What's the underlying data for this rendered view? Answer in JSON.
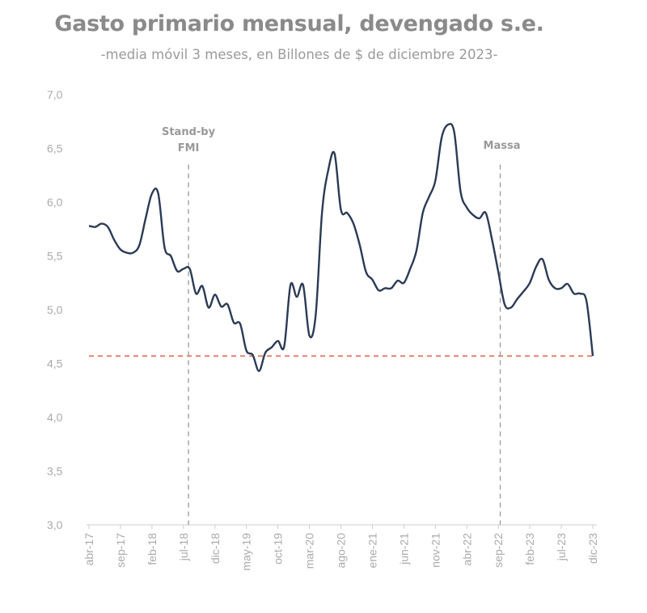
{
  "chart_data": {
    "type": "line",
    "title": "Gasto primario mensual, devengado s.e.",
    "subtitle": "-media móvil 3 meses, en Billones de $ de diciembre 2023-",
    "xlabel": "",
    "ylabel": "",
    "ylim": [
      3.0,
      7.0
    ],
    "y_ticks": [
      "3,0",
      "3,5",
      "4,0",
      "4,5",
      "5,0",
      "5,5",
      "6,0",
      "6,5",
      "7,0"
    ],
    "x_tick_labels": [
      "abr-17",
      "sep-17",
      "feb-18",
      "jul-18",
      "dic-18",
      "may-19",
      "oct-19",
      "mar-20",
      "ago-20",
      "ene-21",
      "jun-21",
      "nov-21",
      "abr-22",
      "sep-22",
      "feb-23",
      "jul-23",
      "dic-23"
    ],
    "x_start": "abr-17",
    "x_end": "dic-23",
    "grid": false,
    "series": [
      {
        "color": "#2b3a55",
        "values": [
          5.78,
          5.77,
          5.8,
          5.77,
          5.65,
          5.56,
          5.53,
          5.53,
          5.6,
          5.85,
          6.08,
          6.08,
          5.58,
          5.5,
          5.36,
          5.38,
          5.38,
          5.15,
          5.22,
          5.02,
          5.14,
          5.03,
          5.05,
          4.88,
          4.87,
          4.62,
          4.58,
          4.43,
          4.6,
          4.65,
          4.71,
          4.66,
          5.23,
          5.12,
          5.23,
          4.76,
          4.95,
          5.9,
          6.3,
          6.45,
          5.93,
          5.9,
          5.8,
          5.6,
          5.35,
          5.28,
          5.18,
          5.2,
          5.2,
          5.27,
          5.25,
          5.38,
          5.55,
          5.9,
          6.05,
          6.2,
          6.6,
          6.72,
          6.65,
          6.1,
          5.95,
          5.88,
          5.85,
          5.9,
          5.65,
          5.35,
          5.05,
          5.02,
          5.1,
          5.17,
          5.25,
          5.4,
          5.47,
          5.28,
          5.2,
          5.2,
          5.24,
          5.15,
          5.15,
          5.08,
          4.57
        ]
      }
    ],
    "reference_line": {
      "value": 4.57,
      "color": "#e8806f",
      "style": "dashed"
    },
    "annotations": [
      {
        "lines": [
          "Stand-by",
          "FMI"
        ],
        "month_index": 15.8
      },
      {
        "lines": [
          "Massa"
        ],
        "month_index": 65.3
      }
    ]
  }
}
